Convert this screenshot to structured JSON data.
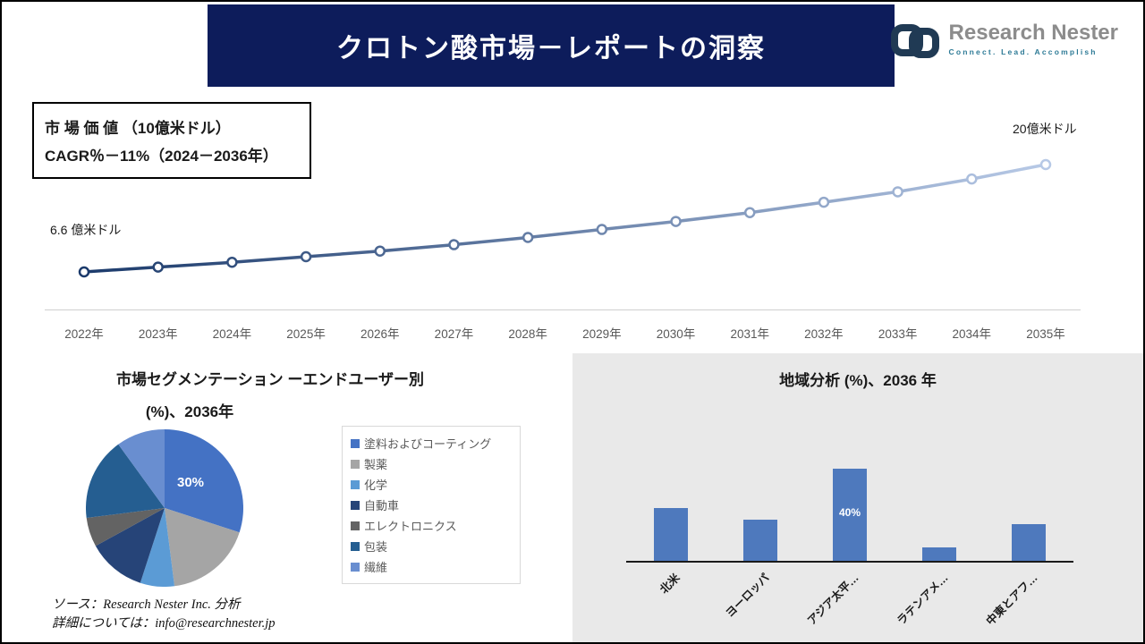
{
  "colors": {
    "header_bg": "#0d1c5b",
    "line_start": "#1b3a6b",
    "line_end": "#b7c9e6",
    "bar": "#4e79bd",
    "panel_bg": "#e9e9e9",
    "logo_icon": "#203a54",
    "logo_tagline": "#2d7a96"
  },
  "header": {
    "title": "クロトン酸市場－レポートの洞察"
  },
  "logo": {
    "name": "Research Nester",
    "tagline": "Connect. Lead. Accomplish",
    "icon": "chain-links-icon"
  },
  "info_box": {
    "line1": "市 場 価 値 （10億米ドル）",
    "line2": "CAGR％－11%（2024－2036年）"
  },
  "chart_data": [
    {
      "type": "line",
      "title": "市場価値（10億米ドル）",
      "x": [
        "2022年",
        "2023年",
        "2024年",
        "2025年",
        "2026年",
        "2027年",
        "2028年",
        "2029年",
        "2030年",
        "2031年",
        "2032年",
        "2033年",
        "2034年",
        "2035年"
      ],
      "values": [
        6.6,
        7.2,
        7.8,
        8.5,
        9.2,
        10.0,
        10.9,
        11.9,
        12.9,
        14.0,
        15.3,
        16.6,
        18.2,
        20.0
      ],
      "start_label": "6.6 億米ドル",
      "end_label": "20億米ドル",
      "ylim": [
        6,
        21
      ],
      "grid": false,
      "legend": "none"
    },
    {
      "type": "pie",
      "title_line1": "市場セグメンテーション ーエンドユーザー別",
      "title_line2": "(%)、2036年",
      "labels": [
        "塗料およびコーティング",
        "製薬",
        "化学",
        "自動車",
        "エレクトロニクス",
        "包装",
        "繊維"
      ],
      "values": [
        30,
        18,
        7,
        12,
        6,
        17,
        10
      ],
      "colors": [
        "#4472c4",
        "#a5a5a5",
        "#5b9bd5",
        "#264478",
        "#636363",
        "#255e91",
        "#698ed0"
      ],
      "callout": "30%",
      "legend_position": "right"
    },
    {
      "type": "bar",
      "title": "地域分析 (%)、2036 年",
      "categories": [
        "北米",
        "ヨーロッパ",
        "アジア太平…",
        "ラテンアメ…",
        "中東とアフ…"
      ],
      "values": [
        23,
        18,
        40,
        6,
        16
      ],
      "ylim": [
        0,
        45
      ],
      "grid": false,
      "data_label": {
        "category": "アジア太平…",
        "text": "40%"
      }
    }
  ],
  "footer": {
    "source_line1": "ソース：Research Nester Inc. 分析",
    "source_line2": "詳細については：info@researchnester.jp"
  }
}
